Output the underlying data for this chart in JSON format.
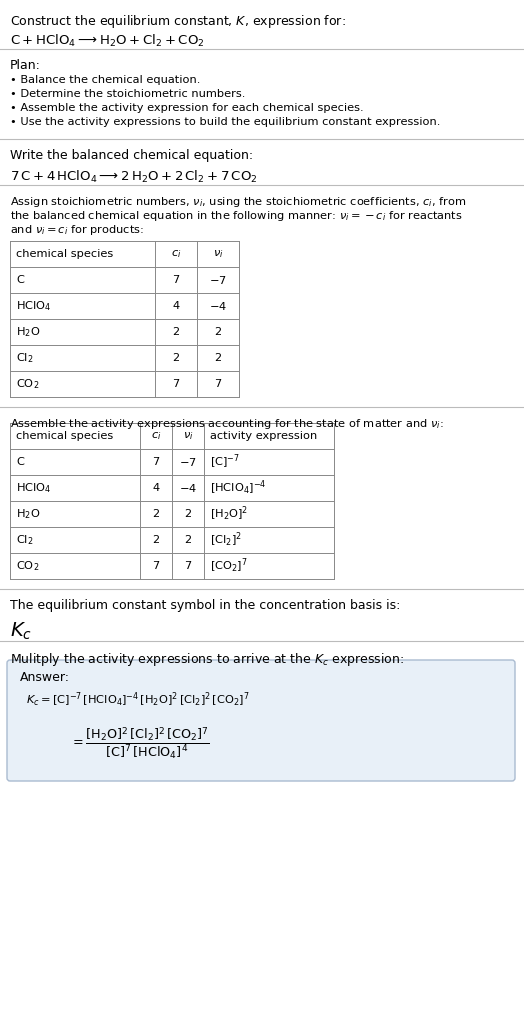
{
  "title_line1": "Construct the equilibrium constant, $K$, expression for:",
  "title_line2": "$\\text{C} + \\text{HClO}_4 \\longrightarrow \\text{H}_2\\text{O} + \\text{Cl}_2 + \\text{CO}_2$",
  "plan_header": "Plan:",
  "plan_items": [
    "• Balance the chemical equation.",
    "• Determine the stoichiometric numbers.",
    "• Assemble the activity expression for each chemical species.",
    "• Use the activity expressions to build the equilibrium constant expression."
  ],
  "balanced_header": "Write the balanced chemical equation:",
  "balanced_eq": "$7\\,\\text{C} + 4\\,\\text{HClO}_4 \\longrightarrow 2\\,\\text{H}_2\\text{O} + 2\\,\\text{Cl}_2 + 7\\,\\text{CO}_2$",
  "table1_cols": [
    "chemical species",
    "$c_i$",
    "$\\nu_i$"
  ],
  "table1_data": [
    [
      "C",
      "7",
      "$-7$"
    ],
    [
      "$\\text{HClO}_4$",
      "4",
      "$-4$"
    ],
    [
      "$\\text{H}_2\\text{O}$",
      "2",
      "2"
    ],
    [
      "$\\text{Cl}_2$",
      "2",
      "2"
    ],
    [
      "$\\text{CO}_2$",
      "7",
      "7"
    ]
  ],
  "table2_cols": [
    "chemical species",
    "$c_i$",
    "$\\nu_i$",
    "activity expression"
  ],
  "table2_data": [
    [
      "C",
      "7",
      "$-7$",
      "$[\\text{C}]^{-7}$"
    ],
    [
      "$\\text{HClO}_4$",
      "4",
      "$-4$",
      "$[\\text{HClO}_4]^{-4}$"
    ],
    [
      "$\\text{H}_2\\text{O}$",
      "2",
      "2",
      "$[\\text{H}_2\\text{O}]^{2}$"
    ],
    [
      "$\\text{Cl}_2$",
      "2",
      "2",
      "$[\\text{Cl}_2]^{2}$"
    ],
    [
      "$\\text{CO}_2$",
      "7",
      "7",
      "$[\\text{CO}_2]^{7}$"
    ]
  ],
  "kc_symbol_header": "The equilibrium constant symbol in the concentration basis is:",
  "kc_symbol": "$K_c$",
  "multiply_header": "Mulitply the activity expressions to arrive at the $K_c$ expression:",
  "answer_line1": "$K_c = [\\text{C}]^{-7}\\,[\\text{HClO}_4]^{-4}\\,[\\text{H}_2\\text{O}]^{2}\\,[\\text{Cl}_2]^{2}\\,[\\text{CO}_2]^{7}$",
  "answer_line2": "$= \\dfrac{[\\text{H}_2\\text{O}]^{2}\\,[\\text{Cl}_2]^{2}\\,[\\text{CO}_2]^{7}}{[\\text{C}]^{7}\\,[\\text{HClO}_4]^{4}}$",
  "bg_color": "#ffffff",
  "text_color": "#000000",
  "answer_box_color": "#e8f0f8",
  "answer_box_border": "#aabbd0"
}
